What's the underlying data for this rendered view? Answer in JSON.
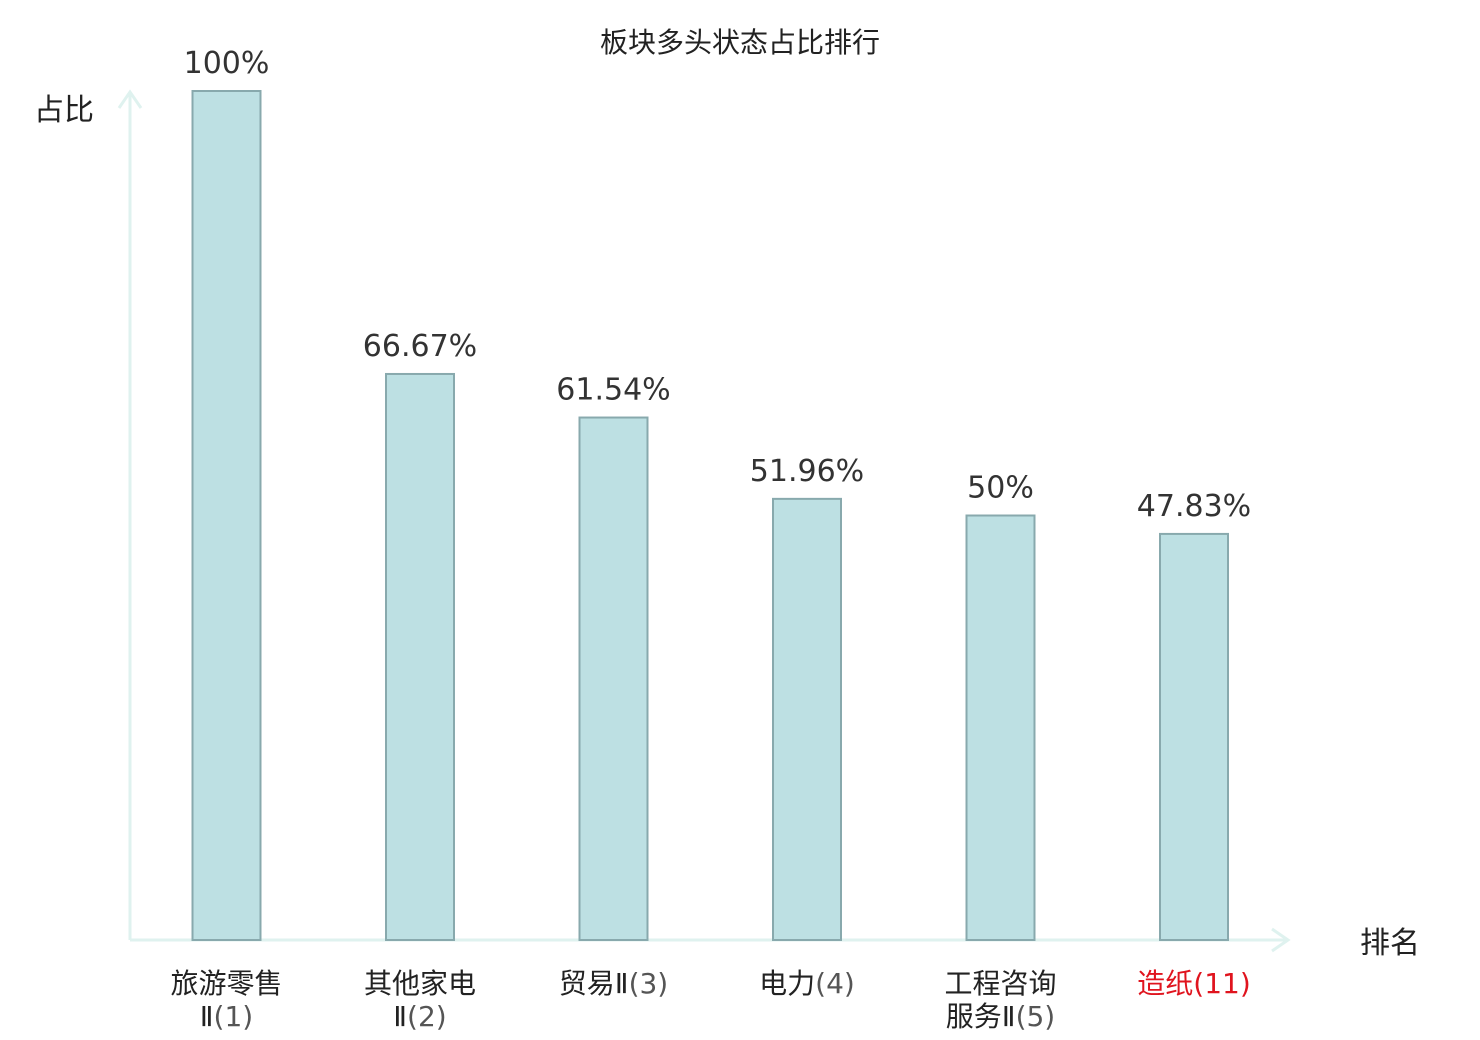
{
  "chart_data": {
    "type": "bar",
    "title": "板块多头状态占比排行",
    "ylabel": "占比",
    "xlabel": "排名",
    "ylim": [
      0,
      100
    ],
    "grid": false,
    "value_suffix": "%",
    "categories": [
      {
        "lines": [
          "旅游零售",
          "Ⅱ"
        ],
        "rank": "(1)",
        "highlight": false
      },
      {
        "lines": [
          "其他家电",
          "Ⅱ"
        ],
        "rank": "(2)",
        "highlight": false
      },
      {
        "lines": [
          "贸易Ⅱ"
        ],
        "rank": "(3)",
        "highlight": false
      },
      {
        "lines": [
          "电力"
        ],
        "rank": "(4)",
        "highlight": false
      },
      {
        "lines": [
          "工程咨询",
          "服务Ⅱ"
        ],
        "rank": "(5)",
        "highlight": false
      },
      {
        "lines": [
          "造纸"
        ],
        "rank": "(11)",
        "highlight": true
      }
    ],
    "values": [
      100,
      66.67,
      61.54,
      51.96,
      50,
      47.83
    ],
    "value_labels": [
      "100%",
      "66.67%",
      "61.54%",
      "51.96%",
      "50%",
      "47.83%"
    ],
    "colors": {
      "bar_fill": "#bde0e3",
      "bar_stroke": "#88a9ad",
      "axis": "#dff2ef",
      "highlight": "#e0141e"
    }
  }
}
